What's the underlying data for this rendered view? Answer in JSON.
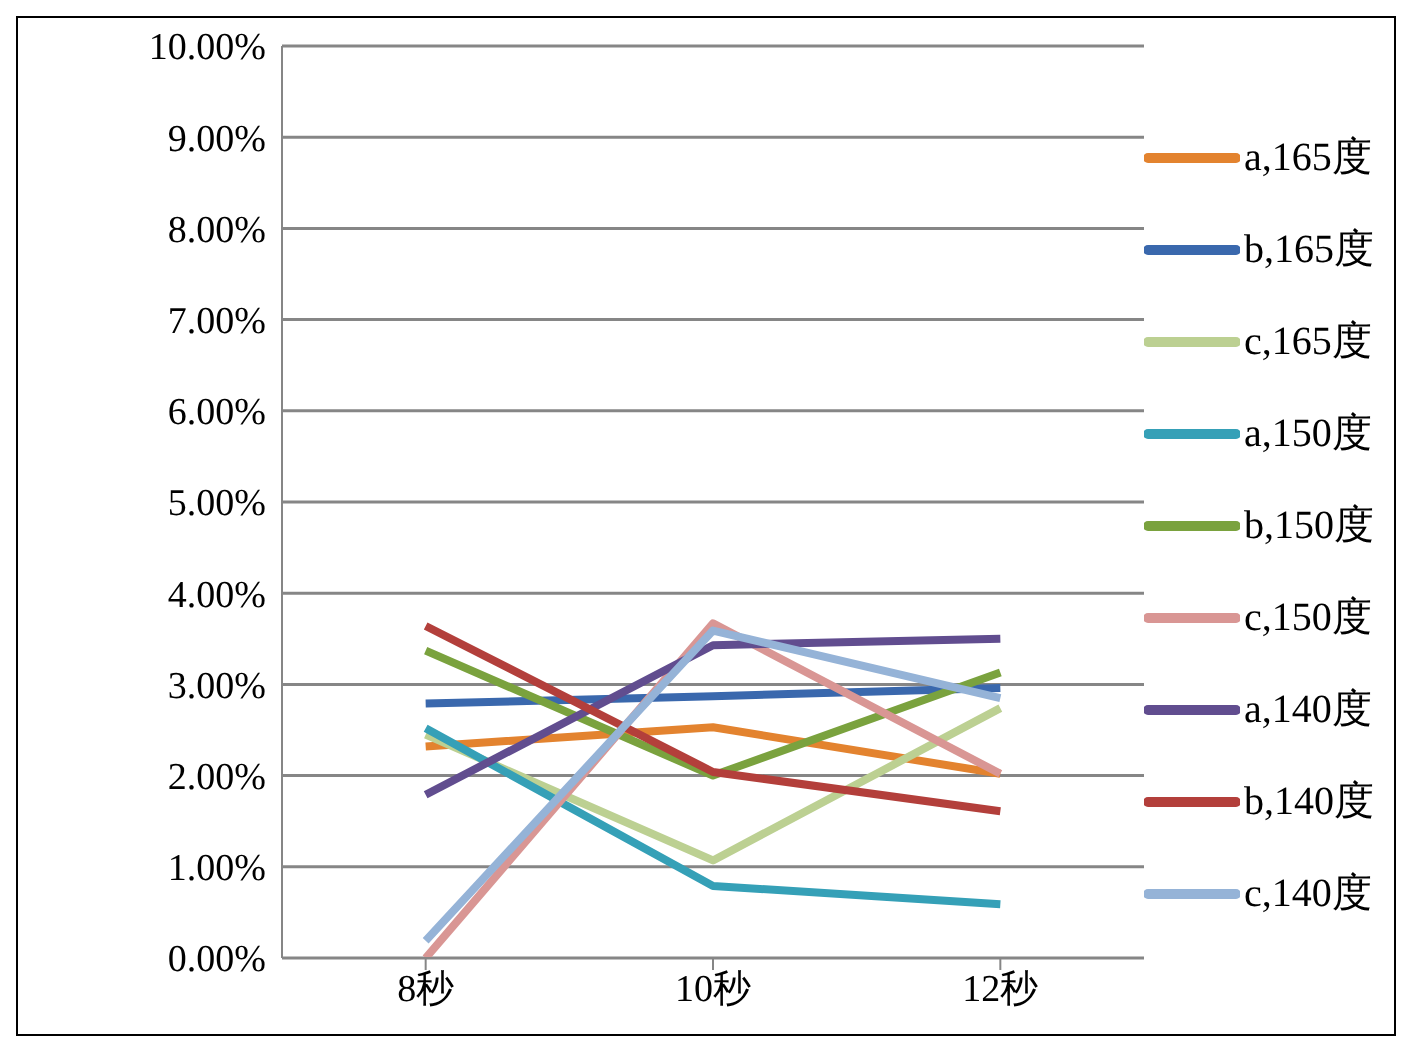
{
  "chart_data": {
    "type": "line",
    "categories": [
      "8秒",
      "10秒",
      "12秒"
    ],
    "series": [
      {
        "name": "a,165度",
        "color": "#e3832f",
        "values": [
          2.32,
          2.53,
          2.02
        ]
      },
      {
        "name": "b,165度",
        "color": "#3a68ad",
        "values": [
          2.79,
          2.87,
          2.96
        ]
      },
      {
        "name": "c,165度",
        "color": "#bcd092",
        "values": [
          2.45,
          1.07,
          2.74
        ]
      },
      {
        "name": "a,150度",
        "color": "#35a0b7",
        "values": [
          2.52,
          0.79,
          0.59
        ]
      },
      {
        "name": "b,150度",
        "color": "#7aa23e",
        "values": [
          3.37,
          2.0,
          3.13
        ]
      },
      {
        "name": "c,150度",
        "color": "#d99694",
        "values": [
          0,
          3.67,
          2.02
        ]
      },
      {
        "name": "a,140度",
        "color": "#614d8f",
        "values": [
          1.79,
          3.43,
          3.5
        ]
      },
      {
        "name": "b,140度",
        "color": "#b33f3b",
        "values": [
          3.64,
          2.04,
          1.61
        ]
      },
      {
        "name": "c,140度",
        "color": "#95b3d7",
        "values": [
          0.19,
          3.59,
          2.85
        ]
      }
    ],
    "ylim": [
      0,
      10
    ],
    "yticks": [
      {
        "value": 0,
        "label": "0.00%"
      },
      {
        "value": 1,
        "label": "1.00%"
      },
      {
        "value": 2,
        "label": "2.00%"
      },
      {
        "value": 3,
        "label": "3.00%"
      },
      {
        "value": 4,
        "label": "4.00%"
      },
      {
        "value": 5,
        "label": "5.00%"
      },
      {
        "value": 6,
        "label": "6.00%"
      },
      {
        "value": 7,
        "label": "7.00%"
      },
      {
        "value": 8,
        "label": "8.00%"
      },
      {
        "value": 9,
        "label": "9.00%"
      },
      {
        "value": 10,
        "label": "10.00%"
      }
    ],
    "grid": "y",
    "legend": "right",
    "marker": "none",
    "line_style": "solid"
  }
}
